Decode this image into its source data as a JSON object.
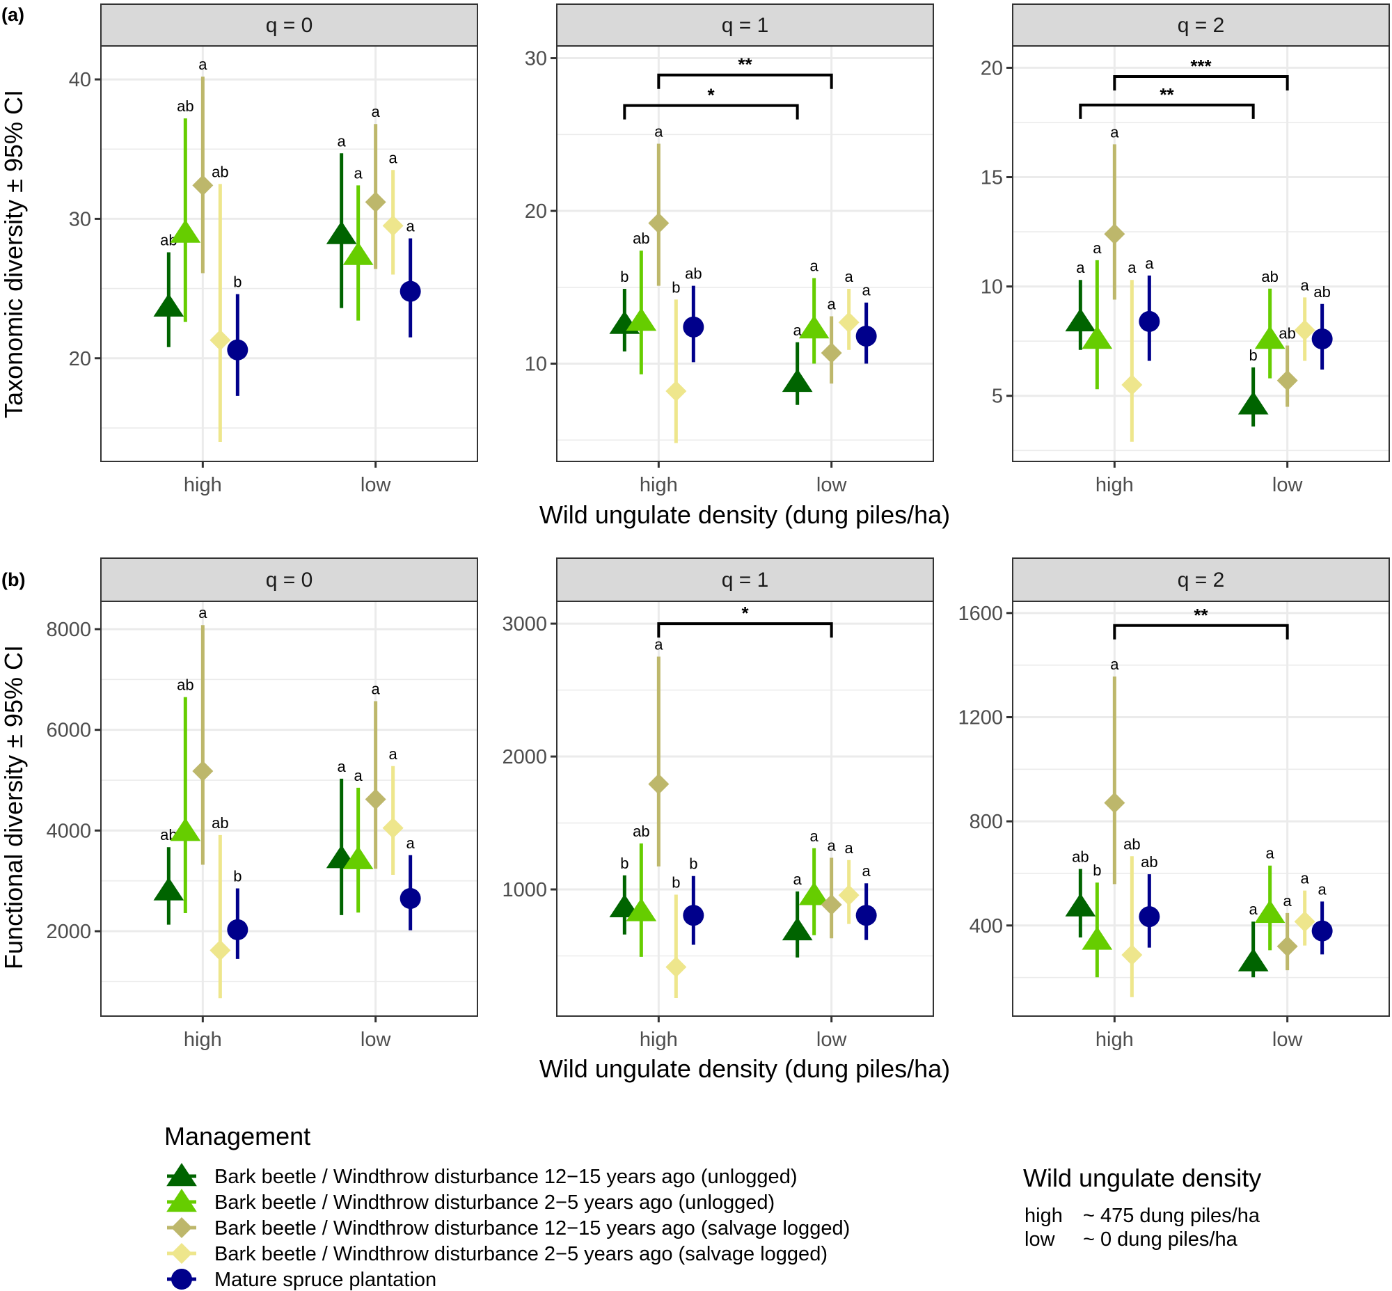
{
  "figure": {
    "panel_tags": [
      "(a)",
      "(b)"
    ],
    "x_axis_title": "Wild ungulate density (dung piles/ha)"
  },
  "legend": {
    "management_title": "Management",
    "management_items": [
      {
        "label": "Bark beetle / Windthrow disturbance 12−15 years ago (unlogged)",
        "shape": "triangle",
        "color": "#006400"
      },
      {
        "label": "Bark beetle / Windthrow disturbance 2−5 years ago (unlogged)",
        "shape": "triangle",
        "color": "#66CD00"
      },
      {
        "label": "Bark beetle / Windthrow disturbance 12−15 years ago (salvage logged)",
        "shape": "diamond",
        "color": "#BDB76B"
      },
      {
        "label": "Bark beetle / Windthrow disturbance 2−5 years ago (salvage logged)",
        "shape": "diamond",
        "color": "#EEE68C"
      },
      {
        "label": "Mature spruce plantation",
        "shape": "circle",
        "color": "#00008B"
      }
    ],
    "density_title": "Wild ungulate density",
    "density_items": [
      {
        "key": "high",
        "value": "~ 475 dung piles/ha"
      },
      {
        "key": "low",
        "value": "~ 0 dung piles/ha"
      }
    ]
  },
  "chart_data": [
    {
      "type": "scatter",
      "row": "a",
      "title": "q = 0",
      "ylabel": "Taxonomic diversity ± 95% CI",
      "xlabel": "Wild ungulate density (dung piles/ha)",
      "categories": [
        "high",
        "low"
      ],
      "ylim": [
        12.6,
        42.4
      ],
      "yticks": [
        20,
        30,
        40
      ],
      "yminor": [
        15,
        25,
        35
      ],
      "grid": true,
      "series": [
        {
          "name": "Bark beetle / Windthrow disturbance 12−15 years ago (unlogged)",
          "mean": [
            23.7,
            28.9
          ],
          "lower": [
            20.8,
            23.6
          ],
          "upper": [
            27.6,
            34.7
          ],
          "letters": [
            "ab",
            "a"
          ]
        },
        {
          "name": "Bark beetle / Windthrow disturbance 2−5 years ago (unlogged)",
          "mean": [
            29.0,
            27.4
          ],
          "lower": [
            22.6,
            22.7
          ],
          "upper": [
            37.2,
            32.4
          ],
          "letters": [
            "ab",
            "a"
          ]
        },
        {
          "name": "Bark beetle / Windthrow disturbance 12−15 years ago (salvage logged)",
          "mean": [
            32.4,
            31.2
          ],
          "lower": [
            26.1,
            26.4
          ],
          "upper": [
            40.2,
            36.8
          ],
          "letters": [
            "a",
            "a"
          ]
        },
        {
          "name": "Bark beetle / Windthrow disturbance 2−5 years ago (salvage logged)",
          "mean": [
            21.3,
            29.5
          ],
          "lower": [
            14.0,
            26.0
          ],
          "upper": [
            32.5,
            33.5
          ],
          "letters": [
            "ab",
            "a"
          ]
        },
        {
          "name": "Mature spruce plantation",
          "mean": [
            20.6,
            24.8
          ],
          "lower": [
            17.3,
            21.5
          ],
          "upper": [
            24.6,
            28.6
          ],
          "letters": [
            "b",
            "a"
          ]
        }
      ],
      "brackets": []
    },
    {
      "type": "scatter",
      "row": "a",
      "title": "q = 1",
      "ylabel": "Taxonomic diversity ± 95% CI",
      "xlabel": "Wild ungulate density (dung piles/ha)",
      "categories": [
        "high",
        "low"
      ],
      "ylim": [
        3.6,
        30.8
      ],
      "yticks": [
        10,
        20,
        30
      ],
      "yminor": [
        5,
        15,
        25
      ],
      "grid": true,
      "series": [
        {
          "name": "Bark beetle / Windthrow disturbance 12−15 years ago (unlogged)",
          "mean": [
            12.6,
            8.8
          ],
          "lower": [
            10.8,
            7.3
          ],
          "upper": [
            14.9,
            11.4
          ],
          "letters": [
            "b",
            "a"
          ]
        },
        {
          "name": "Bark beetle / Windthrow disturbance 2−5 years ago (unlogged)",
          "mean": [
            12.8,
            12.3
          ],
          "lower": [
            9.3,
            10.0
          ],
          "upper": [
            17.4,
            15.6
          ],
          "letters": [
            "ab",
            "a"
          ]
        },
        {
          "name": "Bark beetle / Windthrow disturbance 12−15 years ago (salvage logged)",
          "mean": [
            19.2,
            10.7
          ],
          "lower": [
            15.1,
            8.7
          ],
          "upper": [
            24.4,
            13.1
          ],
          "letters": [
            "a",
            "a"
          ]
        },
        {
          "name": "Bark beetle / Windthrow disturbance 2−5 years ago (salvage logged)",
          "mean": [
            8.2,
            12.7
          ],
          "lower": [
            4.8,
            10.9
          ],
          "upper": [
            14.2,
            14.9
          ],
          "letters": [
            "b",
            "a"
          ]
        },
        {
          "name": "Mature spruce plantation",
          "mean": [
            12.4,
            11.8
          ],
          "lower": [
            10.1,
            10.0
          ],
          "upper": [
            15.1,
            14.0
          ],
          "letters": [
            "ab",
            "a"
          ]
        }
      ],
      "brackets": [
        {
          "from_series": 2,
          "to_series": 2,
          "from": "high",
          "to": "low",
          "y": 28.9,
          "label": "**"
        },
        {
          "from_series": 0,
          "to_series": 0,
          "from": "high",
          "to": "low",
          "y": 26.9,
          "label": "*"
        }
      ]
    },
    {
      "type": "scatter",
      "row": "a",
      "title": "q = 2",
      "ylabel": "Taxonomic diversity ± 95% CI",
      "xlabel": "Wild ungulate density (dung piles/ha)",
      "categories": [
        "high",
        "low"
      ],
      "ylim": [
        2.0,
        21.0
      ],
      "yticks": [
        5,
        10,
        15,
        20
      ],
      "yminor": [
        2.5,
        7.5,
        12.5,
        17.5
      ],
      "grid": true,
      "series": [
        {
          "name": "Bark beetle / Windthrow disturbance 12−15 years ago (unlogged)",
          "mean": [
            8.4,
            4.6
          ],
          "lower": [
            7.1,
            3.6
          ],
          "upper": [
            10.3,
            6.3
          ],
          "letters": [
            "a",
            "b"
          ]
        },
        {
          "name": "Bark beetle / Windthrow disturbance 2−5 years ago (unlogged)",
          "mean": [
            7.6,
            7.6
          ],
          "lower": [
            5.3,
            5.8
          ],
          "upper": [
            11.2,
            9.9
          ],
          "letters": [
            "a",
            "ab"
          ]
        },
        {
          "name": "Bark beetle / Windthrow disturbance 12−15 years ago (salvage logged)",
          "mean": [
            12.4,
            5.7
          ],
          "lower": [
            9.4,
            4.5
          ],
          "upper": [
            16.5,
            7.3
          ],
          "letters": [
            "a",
            "ab"
          ]
        },
        {
          "name": "Bark beetle / Windthrow disturbance 2−5 years ago (salvage logged)",
          "mean": [
            5.5,
            8.0
          ],
          "lower": [
            2.9,
            6.6
          ],
          "upper": [
            10.3,
            9.5
          ],
          "letters": [
            "a",
            "a"
          ]
        },
        {
          "name": "Mature spruce plantation",
          "mean": [
            8.4,
            7.6
          ],
          "lower": [
            6.6,
            6.2
          ],
          "upper": [
            10.5,
            9.2
          ],
          "letters": [
            "a",
            "ab"
          ]
        }
      ],
      "brackets": [
        {
          "from_series": 2,
          "to_series": 2,
          "from": "high",
          "to": "low",
          "y": 19.6,
          "label": "***"
        },
        {
          "from_series": 0,
          "to_series": 0,
          "from": "high",
          "to": "low",
          "y": 18.3,
          "label": "**"
        }
      ]
    },
    {
      "type": "scatter",
      "row": "b",
      "title": "q = 0",
      "ylabel": "Functional diversity ± 95% CI",
      "xlabel": "Wild ungulate density (dung piles/ha)",
      "categories": [
        "high",
        "low"
      ],
      "ylim": [
        314,
        8553
      ],
      "yticks": [
        2000,
        4000,
        6000,
        8000
      ],
      "yminor": [
        1000,
        3000,
        5000,
        7000
      ],
      "grid": true,
      "series": [
        {
          "name": "Bark beetle / Windthrow disturbance 12−15 years ago (unlogged)",
          "mean": [
            2810,
            3450
          ],
          "lower": [
            2130,
            2320
          ],
          "upper": [
            3670,
            5030
          ],
          "letters": [
            "ab",
            "a"
          ]
        },
        {
          "name": "Bark beetle / Windthrow disturbance 2−5 years ago (unlogged)",
          "mean": [
            3990,
            3430
          ],
          "lower": [
            2360,
            2370
          ],
          "upper": [
            6650,
            4850
          ],
          "letters": [
            "ab",
            "a"
          ]
        },
        {
          "name": "Bark beetle / Windthrow disturbance 12−15 years ago (salvage logged)",
          "mean": [
            5180,
            4620
          ],
          "lower": [
            3320,
            3240
          ],
          "upper": [
            8080,
            6570
          ],
          "letters": [
            "a",
            "a"
          ]
        },
        {
          "name": "Bark beetle / Windthrow disturbance 2−5 years ago (salvage logged)",
          "mean": [
            1620,
            4050
          ],
          "lower": [
            670,
            3120
          ],
          "upper": [
            3910,
            5280
          ],
          "letters": [
            "ab",
            "a"
          ]
        },
        {
          "name": "Mature spruce plantation",
          "mean": [
            2030,
            2650
          ],
          "lower": [
            1450,
            2020
          ],
          "upper": [
            2850,
            3510
          ],
          "letters": [
            "b",
            "a"
          ]
        }
      ],
      "brackets": []
    },
    {
      "type": "scatter",
      "row": "b",
      "title": "q = 1",
      "ylabel": "Functional diversity ± 95% CI",
      "xlabel": "Wild ungulate density (dung piles/ha)",
      "categories": [
        "high",
        "low"
      ],
      "ylim": [
        47,
        3168
      ],
      "yticks": [
        1000,
        2000,
        3000
      ],
      "yminor": [
        500,
        1500,
        2500
      ],
      "grid": true,
      "series": [
        {
          "name": "Bark beetle / Windthrow disturbance 12−15 years ago (unlogged)",
          "mean": [
            865,
            692
          ],
          "lower": [
            661,
            488
          ],
          "upper": [
            1106,
            985
          ],
          "letters": [
            "b",
            "a"
          ]
        },
        {
          "name": "Bark beetle / Windthrow disturbance 2−5 years ago (unlogged)",
          "mean": [
            836,
            957
          ],
          "lower": [
            493,
            656
          ],
          "upper": [
            1346,
            1310
          ],
          "letters": [
            "ab",
            "a"
          ]
        },
        {
          "name": "Bark beetle / Windthrow disturbance 12−15 years ago (salvage logged)",
          "mean": [
            1793,
            885
          ],
          "lower": [
            1173,
            632
          ],
          "upper": [
            2752,
            1238
          ],
          "letters": [
            "a",
            "a"
          ]
        },
        {
          "name": "Bark beetle / Windthrow disturbance 2−5 years ago (salvage logged)",
          "mean": [
            416,
            957
          ],
          "lower": [
            183,
            740
          ],
          "upper": [
            961,
            1221
          ],
          "letters": [
            "b",
            "a"
          ]
        },
        {
          "name": "Mature spruce plantation",
          "mean": [
            805,
            805
          ],
          "lower": [
            584,
            620
          ],
          "upper": [
            1101,
            1046
          ],
          "letters": [
            "b",
            "a"
          ]
        }
      ],
      "brackets": [
        {
          "from_series": 2,
          "to_series": 2,
          "from": "high",
          "to": "low",
          "y": 3000,
          "label": "*"
        }
      ]
    },
    {
      "type": "scatter",
      "row": "b",
      "title": "q = 2",
      "ylabel": "Functional diversity ± 95% CI",
      "xlabel": "Wild ungulate density (dung piles/ha)",
      "categories": [
        "high",
        "low"
      ],
      "ylim": [
        52,
        1645
      ],
      "yticks": [
        400,
        800,
        1200,
        1600
      ],
      "yminor": [
        200,
        600,
        1000,
        1400
      ],
      "grid": true,
      "series": [
        {
          "name": "Bark beetle / Windthrow disturbance 12−15 years ago (unlogged)",
          "mean": [
            473,
            262
          ],
          "lower": [
            354,
            201
          ],
          "upper": [
            617,
            415
          ],
          "letters": [
            "ab",
            "a"
          ]
        },
        {
          "name": "Bark beetle / Windthrow disturbance 2−5 years ago (unlogged)",
          "mean": [
            345,
            448
          ],
          "lower": [
            201,
            305
          ],
          "upper": [
            565,
            630
          ],
          "letters": [
            "b",
            "a"
          ]
        },
        {
          "name": "Bark beetle / Windthrow disturbance 12−15 years ago (salvage logged)",
          "mean": [
            871,
            320
          ],
          "lower": [
            559,
            228
          ],
          "upper": [
            1356,
            448
          ],
          "letters": [
            "a",
            "a"
          ]
        },
        {
          "name": "Bark beetle / Windthrow disturbance 2−5 years ago (salvage logged)",
          "mean": [
            287,
            415
          ],
          "lower": [
            125,
            323
          ],
          "upper": [
            666,
            534
          ],
          "letters": [
            "ab",
            "a"
          ]
        },
        {
          "name": "Mature spruce plantation",
          "mean": [
            434,
            379
          ],
          "lower": [
            315,
            289
          ],
          "upper": [
            597,
            492
          ],
          "letters": [
            "ab",
            "a"
          ]
        }
      ],
      "brackets": [
        {
          "from_series": 2,
          "to_series": 2,
          "from": "high",
          "to": "low",
          "y": 1552,
          "label": "**"
        }
      ]
    }
  ]
}
